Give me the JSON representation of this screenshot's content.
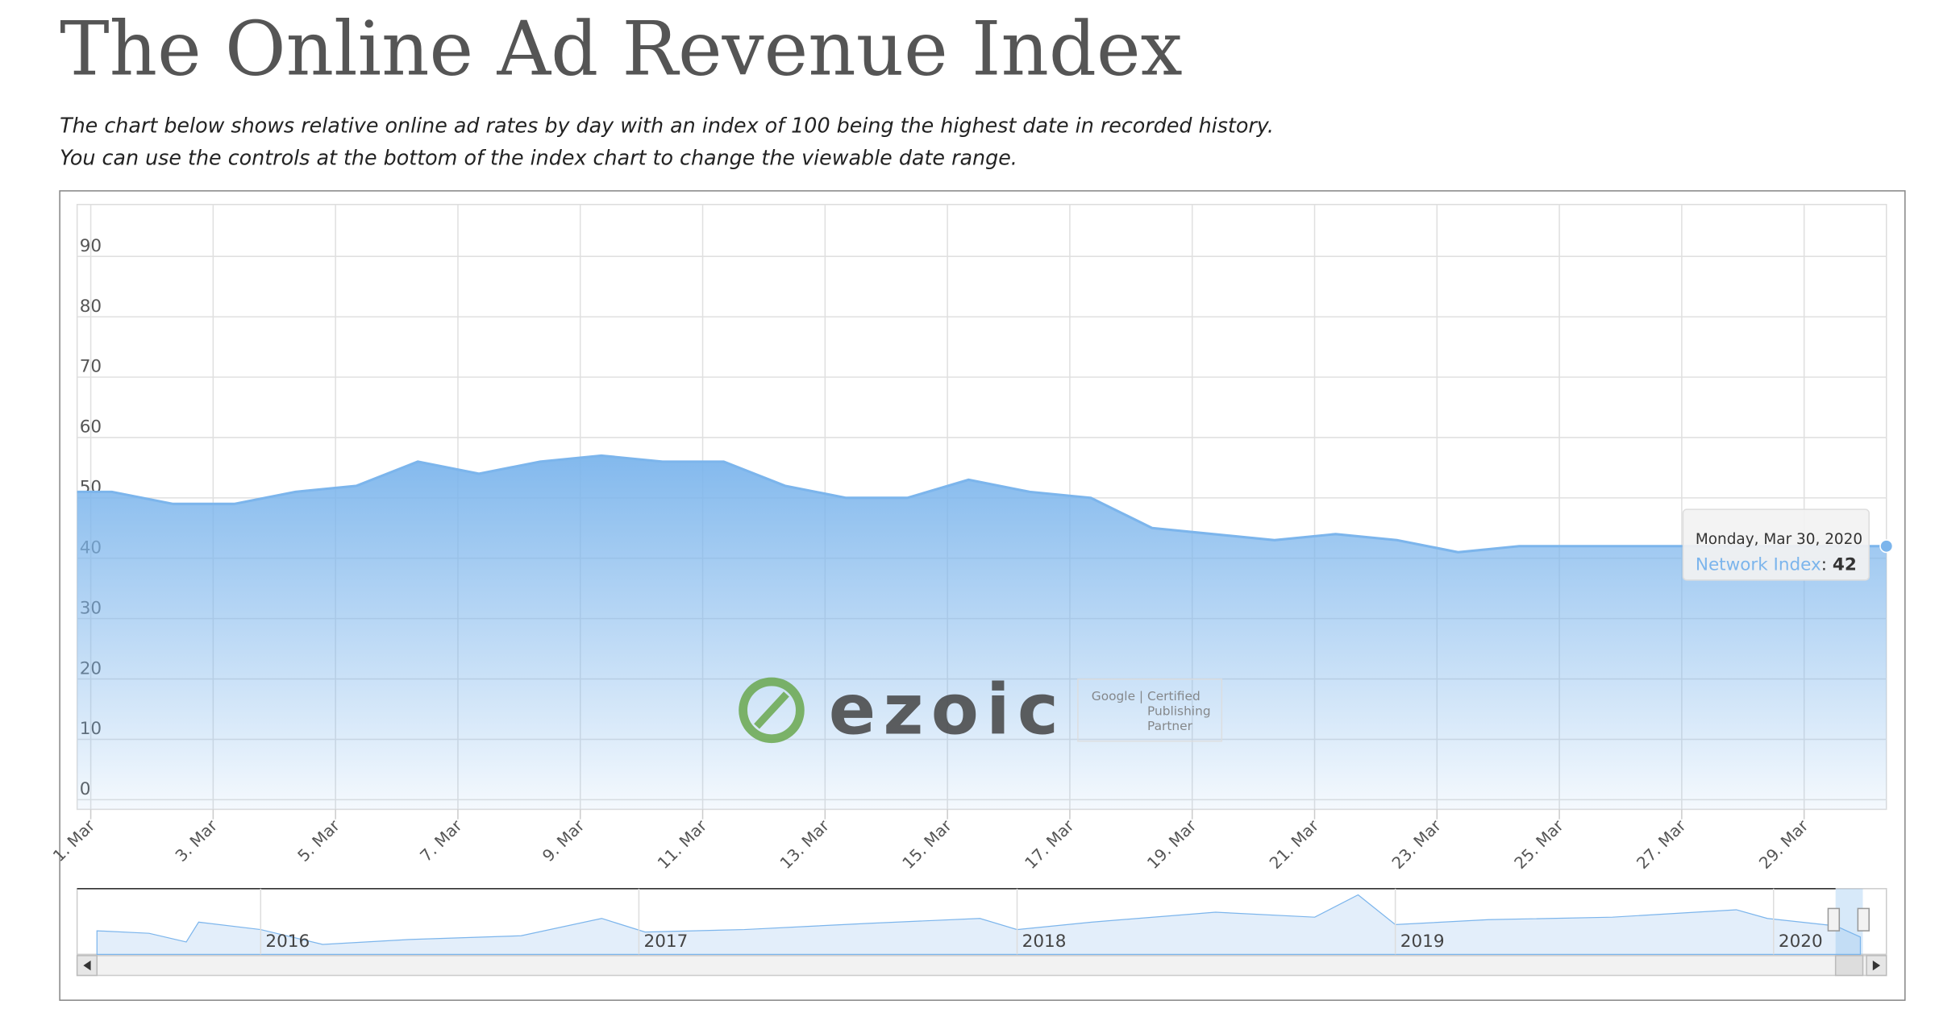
{
  "header": {
    "title": "The Online Ad Revenue Index",
    "subtitle_lines": [
      "The chart below shows relative online ad rates by day with an index of 100 being the highest date in recorded history.",
      "You can use the controls at the bottom of the index chart to change the viewable date range."
    ]
  },
  "chart_data": {
    "type": "area",
    "categories": [
      "1. Mar",
      null,
      "3. Mar",
      null,
      "5. Mar",
      null,
      "7. Mar",
      null,
      "9. Mar",
      null,
      "11. Mar",
      null,
      "13. Mar",
      null,
      "15. Mar",
      null,
      "17. Mar",
      null,
      "19. Mar",
      null,
      "21. Mar",
      null,
      "23. Mar",
      null,
      "25. Mar",
      null,
      "27. Mar",
      null,
      "29. Mar",
      null
    ],
    "series": [
      {
        "name": "Network Index",
        "color": "#7cb5ec",
        "values": [
          51,
          49,
          49,
          51,
          52,
          56,
          54,
          56,
          57,
          56,
          56,
          52,
          50,
          50,
          53,
          51,
          50,
          45,
          44,
          43,
          44,
          43,
          41,
          42,
          42,
          42,
          42,
          42,
          42,
          42
        ]
      }
    ],
    "ylim": [
      -1.6,
      98.6
    ],
    "yticks": [
      0,
      10,
      20,
      30,
      40,
      50,
      60,
      70,
      80,
      90
    ],
    "grid": true,
    "tooltip": {
      "header": "Monday, Mar 30, 2020",
      "separator": ":"
    },
    "navigator_labels": [
      "2016",
      "2017",
      "2018",
      "2019",
      "2020"
    ],
    "watermark": {
      "brand": "ezoic",
      "badge_lines": [
        "Google | Certified",
        "Publishing",
        "Partner"
      ]
    }
  }
}
